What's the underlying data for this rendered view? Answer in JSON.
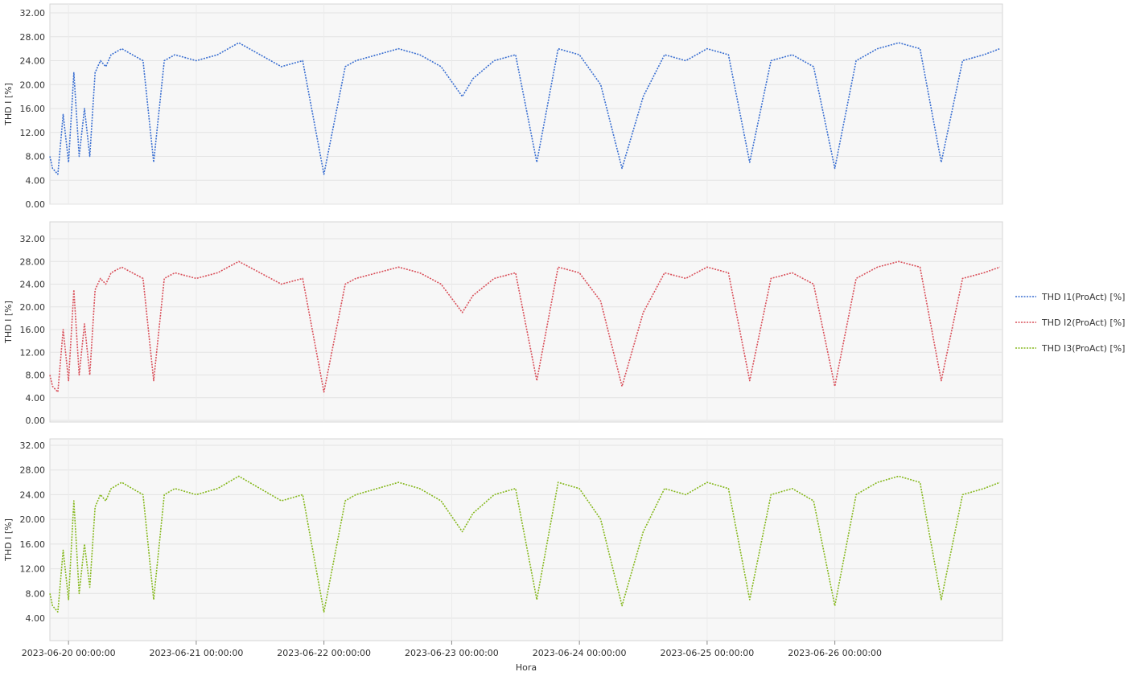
{
  "chart_data": {
    "type": "line",
    "xlabel": "Hora",
    "ylabel": "THD I [%]",
    "legend_position": "right",
    "grid": true,
    "x_range": [
      "2023-06-19 20:30:00",
      "2023-06-27 07:30:00"
    ],
    "x_tick_labels": [
      "2023-06-20 00:00:00",
      "2023-06-21 00:00:00",
      "2023-06-22 00:00:00",
      "2023-06-23 00:00:00",
      "2023-06-24 00:00:00",
      "2023-06-25 00:00:00",
      "2023-06-26 00:00:00"
    ],
    "panels": [
      {
        "ylim": [
          0,
          33
        ],
        "y_tick_labels": [
          "0.00",
          "4.00",
          "8.00",
          "12.00",
          "16.00",
          "20.00",
          "24.00",
          "28.00",
          "32.00"
        ],
        "series": [
          {
            "name": "THD I1(ProAct) [%]",
            "color": "#3a6fd1",
            "x": [
              "2023-06-19 20:30",
              "2023-06-19 21:00",
              "2023-06-19 22:00",
              "2023-06-19 23:00",
              "2023-06-20 00:00",
              "2023-06-20 01:00",
              "2023-06-20 02:00",
              "2023-06-20 03:00",
              "2023-06-20 04:00",
              "2023-06-20 05:00",
              "2023-06-20 06:00",
              "2023-06-20 07:00",
              "2023-06-20 08:00",
              "2023-06-20 10:00",
              "2023-06-20 12:00",
              "2023-06-20 14:00",
              "2023-06-20 16:00",
              "2023-06-20 18:00",
              "2023-06-20 20:00",
              "2023-06-21 00:00",
              "2023-06-21 04:00",
              "2023-06-21 06:00",
              "2023-06-21 08:00",
              "2023-06-21 12:00",
              "2023-06-21 16:00",
              "2023-06-21 20:00",
              "2023-06-22 00:00",
              "2023-06-22 04:00",
              "2023-06-22 06:00",
              "2023-06-22 10:00",
              "2023-06-22 14:00",
              "2023-06-22 18:00",
              "2023-06-22 22:00",
              "2023-06-23 02:00",
              "2023-06-23 04:00",
              "2023-06-23 08:00",
              "2023-06-23 12:00",
              "2023-06-23 16:00",
              "2023-06-23 20:00",
              "2023-06-24 00:00",
              "2023-06-24 04:00",
              "2023-06-24 08:00",
              "2023-06-24 12:00",
              "2023-06-24 16:00",
              "2023-06-24 20:00",
              "2023-06-25 00:00",
              "2023-06-25 04:00",
              "2023-06-25 08:00",
              "2023-06-25 12:00",
              "2023-06-25 16:00",
              "2023-06-25 20:00",
              "2023-06-26 00:00",
              "2023-06-26 04:00",
              "2023-06-26 08:00",
              "2023-06-26 12:00",
              "2023-06-26 16:00",
              "2023-06-26 20:00",
              "2023-06-27 00:00",
              "2023-06-27 04:00",
              "2023-06-27 07:00"
            ],
            "values": [
              8,
              6,
              5,
              15,
              7,
              22,
              8,
              16,
              8,
              22,
              24,
              23,
              25,
              26,
              25,
              24,
              7,
              24,
              25,
              24,
              25,
              26,
              27,
              25,
              23,
              24,
              5,
              23,
              24,
              25,
              26,
              25,
              23,
              18,
              21,
              24,
              25,
              7,
              26,
              25,
              20,
              6,
              18,
              25,
              24,
              26,
              25,
              7,
              24,
              25,
              23,
              6,
              24,
              26,
              27,
              26,
              7,
              24,
              25,
              26
            ]
          }
        ]
      },
      {
        "ylim": [
          0,
          33
        ],
        "y_tick_labels": [
          "0.00",
          "4.00",
          "8.00",
          "12.00",
          "16.00",
          "20.00",
          "24.00",
          "28.00",
          "32.00"
        ],
        "series": [
          {
            "name": "THD I2(ProAct) [%]",
            "color": "#d9505a",
            "x": [
              "2023-06-19 20:30",
              "2023-06-19 21:00",
              "2023-06-19 22:00",
              "2023-06-19 23:00",
              "2023-06-20 00:00",
              "2023-06-20 01:00",
              "2023-06-20 02:00",
              "2023-06-20 03:00",
              "2023-06-20 04:00",
              "2023-06-20 05:00",
              "2023-06-20 06:00",
              "2023-06-20 07:00",
              "2023-06-20 08:00",
              "2023-06-20 10:00",
              "2023-06-20 12:00",
              "2023-06-20 14:00",
              "2023-06-20 16:00",
              "2023-06-20 18:00",
              "2023-06-20 20:00",
              "2023-06-21 00:00",
              "2023-06-21 04:00",
              "2023-06-21 06:00",
              "2023-06-21 08:00",
              "2023-06-21 12:00",
              "2023-06-21 16:00",
              "2023-06-21 20:00",
              "2023-06-22 00:00",
              "2023-06-22 04:00",
              "2023-06-22 06:00",
              "2023-06-22 10:00",
              "2023-06-22 14:00",
              "2023-06-22 18:00",
              "2023-06-22 22:00",
              "2023-06-23 02:00",
              "2023-06-23 04:00",
              "2023-06-23 08:00",
              "2023-06-23 12:00",
              "2023-06-23 16:00",
              "2023-06-23 20:00",
              "2023-06-24 00:00",
              "2023-06-24 04:00",
              "2023-06-24 08:00",
              "2023-06-24 12:00",
              "2023-06-24 16:00",
              "2023-06-24 20:00",
              "2023-06-25 00:00",
              "2023-06-25 04:00",
              "2023-06-25 08:00",
              "2023-06-25 12:00",
              "2023-06-25 16:00",
              "2023-06-25 20:00",
              "2023-06-26 00:00",
              "2023-06-26 04:00",
              "2023-06-26 08:00",
              "2023-06-26 12:00",
              "2023-06-26 16:00",
              "2023-06-26 20:00",
              "2023-06-27 00:00",
              "2023-06-27 04:00",
              "2023-06-27 07:00"
            ],
            "values": [
              8,
              6,
              5,
              16,
              7,
              23,
              8,
              17,
              8,
              23,
              25,
              24,
              26,
              27,
              26,
              25,
              7,
              25,
              26,
              25,
              26,
              27,
              28,
              26,
              24,
              25,
              5,
              24,
              25,
              26,
              27,
              26,
              24,
              19,
              22,
              25,
              26,
              7,
              27,
              26,
              21,
              6,
              19,
              26,
              25,
              27,
              26,
              7,
              25,
              26,
              24,
              6,
              25,
              27,
              28,
              27,
              7,
              25,
              26,
              27
            ]
          }
        ]
      },
      {
        "ylim": [
          2,
          33
        ],
        "y_tick_labels": [
          "4.00",
          "8.00",
          "12.00",
          "16.00",
          "20.00",
          "24.00",
          "28.00",
          "32.00"
        ],
        "series": [
          {
            "name": "THD I3(ProAct) [%]",
            "color": "#86b81e",
            "x": [
              "2023-06-19 20:30",
              "2023-06-19 21:00",
              "2023-06-19 22:00",
              "2023-06-19 23:00",
              "2023-06-20 00:00",
              "2023-06-20 01:00",
              "2023-06-20 02:00",
              "2023-06-20 03:00",
              "2023-06-20 04:00",
              "2023-06-20 05:00",
              "2023-06-20 06:00",
              "2023-06-20 07:00",
              "2023-06-20 08:00",
              "2023-06-20 10:00",
              "2023-06-20 12:00",
              "2023-06-20 14:00",
              "2023-06-20 16:00",
              "2023-06-20 18:00",
              "2023-06-20 20:00",
              "2023-06-21 00:00",
              "2023-06-21 04:00",
              "2023-06-21 06:00",
              "2023-06-21 08:00",
              "2023-06-21 12:00",
              "2023-06-21 16:00",
              "2023-06-21 20:00",
              "2023-06-22 00:00",
              "2023-06-22 04:00",
              "2023-06-22 06:00",
              "2023-06-22 10:00",
              "2023-06-22 14:00",
              "2023-06-22 18:00",
              "2023-06-22 22:00",
              "2023-06-23 02:00",
              "2023-06-23 04:00",
              "2023-06-23 08:00",
              "2023-06-23 12:00",
              "2023-06-23 16:00",
              "2023-06-23 20:00",
              "2023-06-24 00:00",
              "2023-06-24 04:00",
              "2023-06-24 08:00",
              "2023-06-24 12:00",
              "2023-06-24 16:00",
              "2023-06-24 20:00",
              "2023-06-25 00:00",
              "2023-06-25 04:00",
              "2023-06-25 08:00",
              "2023-06-25 12:00",
              "2023-06-25 16:00",
              "2023-06-25 20:00",
              "2023-06-26 00:00",
              "2023-06-26 04:00",
              "2023-06-26 08:00",
              "2023-06-26 12:00",
              "2023-06-26 16:00",
              "2023-06-26 20:00",
              "2023-06-27 00:00",
              "2023-06-27 04:00",
              "2023-06-27 07:00"
            ],
            "values": [
              8,
              6,
              5,
              15,
              7,
              23,
              8,
              16,
              9,
              22,
              24,
              23,
              25,
              26,
              25,
              24,
              7,
              24,
              25,
              24,
              25,
              26,
              27,
              25,
              23,
              24,
              5,
              23,
              24,
              25,
              26,
              25,
              23,
              18,
              21,
              24,
              25,
              7,
              26,
              25,
              20,
              6,
              18,
              25,
              24,
              26,
              25,
              7,
              24,
              25,
              23,
              6,
              24,
              26,
              27,
              26,
              7,
              24,
              25,
              26
            ]
          }
        ]
      }
    ]
  }
}
